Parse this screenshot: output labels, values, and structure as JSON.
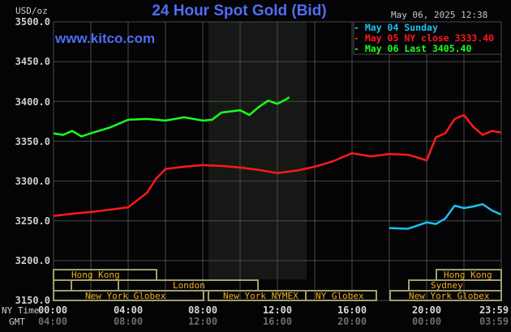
{
  "header": {
    "title": "24 Hour Spot Gold (Bid)",
    "datetime": "May 06, 2025 12:38",
    "unit": "USD/oz",
    "site": "www.kitco.com"
  },
  "legend": [
    {
      "label": "May 04 Sunday",
      "color": "#19c2f0"
    },
    {
      "label": "May 05 NY close 3333.40",
      "color": "#ff1a1a"
    },
    {
      "label": "May 06 Last 3405.40",
      "color": "#1aff1a"
    }
  ],
  "y_ticks": [
    "3500.0",
    "3450.0",
    "3400.0",
    "3350.0",
    "3300.0",
    "3250.0",
    "3200.0",
    "3150.0"
  ],
  "x_axis": {
    "ny_label": "NY Time",
    "gmt_label": "GMT",
    "ny_ticks": [
      "00:00",
      "04:00",
      "08:00",
      "12:00",
      "16:00",
      "20:00",
      "23:59"
    ],
    "gmt_ticks": [
      "04:00",
      "08:00",
      "12:00",
      "16:00",
      "20:00",
      "00:00",
      "03:59"
    ]
  },
  "sessions": {
    "hong_kong_1": "Hong Kong",
    "london": "London",
    "ny_globex_1": "New York Globex",
    "ny_nymex": "New York NYMEX",
    "ny_globex_2": "NY Globex",
    "hong_kong_2": "Hong Kong",
    "sydney": "Sydney",
    "ny_globex_3": "New York Globex"
  },
  "chart_data": {
    "type": "line",
    "title": "24 Hour Spot Gold (Bid)",
    "xlabel": "NY Time (GMT)",
    "ylabel": "USD/oz",
    "ylim": [
      3150,
      3500
    ],
    "xlim": [
      "00:00",
      "23:59"
    ],
    "grid": true,
    "legend_position": "top-right",
    "shaded_region": {
      "label": "New York NYMEX",
      "x": [
        "08:20",
        "13:35"
      ]
    },
    "series": [
      {
        "name": "May 04 Sunday",
        "color": "#19c2f0",
        "x": [
          "18:00",
          "19:00",
          "19:30",
          "20:00",
          "20:30",
          "21:00",
          "21:30",
          "22:00",
          "22:30",
          "23:00",
          "23:30",
          "23:59"
        ],
        "values": [
          3241,
          3240,
          3244,
          3248,
          3246,
          3253,
          3269,
          3266,
          3268,
          3271,
          3263,
          3258
        ]
      },
      {
        "name": "May 05 NY close 3333.40",
        "color": "#ff1a1a",
        "x": [
          "00:00",
          "01:00",
          "02:00",
          "03:00",
          "04:00",
          "05:00",
          "05:30",
          "06:00",
          "07:00",
          "08:00",
          "09:00",
          "10:00",
          "11:00",
          "12:00",
          "13:00",
          "14:00",
          "15:00",
          "16:00",
          "17:00",
          "18:00",
          "19:00",
          "20:00",
          "20:30",
          "21:00",
          "21:30",
          "22:00",
          "22:30",
          "23:00",
          "23:30",
          "23:59"
        ],
        "values": [
          3256,
          3259,
          3261,
          3264,
          3267,
          3285,
          3303,
          3315,
          3318,
          3320,
          3319,
          3317,
          3314,
          3310,
          3313,
          3318,
          3325,
          3335,
          3331,
          3334,
          3333,
          3326,
          3355,
          3360,
          3378,
          3383,
          3368,
          3358,
          3363,
          3361
        ]
      },
      {
        "name": "May 06 Last 3405.40",
        "color": "#1aff1a",
        "x": [
          "00:00",
          "00:30",
          "01:00",
          "01:30",
          "02:00",
          "03:00",
          "04:00",
          "05:00",
          "06:00",
          "07:00",
          "08:00",
          "08:30",
          "09:00",
          "10:00",
          "10:30",
          "11:00",
          "11:30",
          "12:00",
          "12:30",
          "12:38"
        ],
        "values": [
          3360,
          3358,
          3363,
          3356,
          3360,
          3367,
          3377,
          3378,
          3376,
          3380,
          3376,
          3377,
          3386,
          3389,
          3383,
          3393,
          3401,
          3397,
          3403,
          3405.4
        ]
      }
    ]
  }
}
